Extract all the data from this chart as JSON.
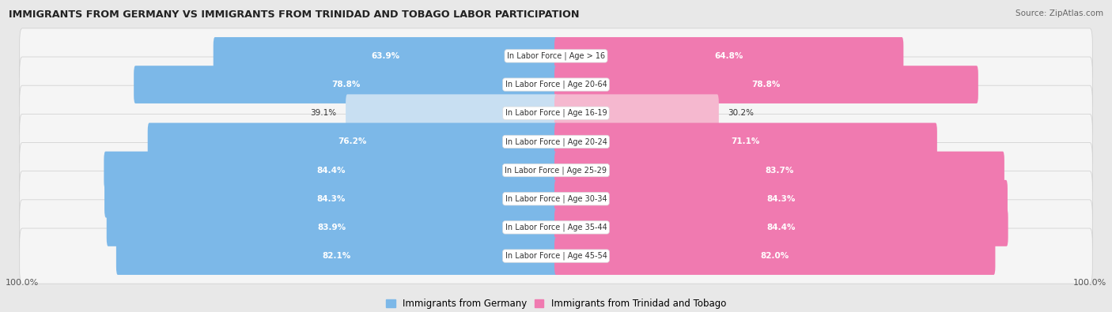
{
  "title": "IMMIGRANTS FROM GERMANY VS IMMIGRANTS FROM TRINIDAD AND TOBAGO LABOR PARTICIPATION",
  "source": "Source: ZipAtlas.com",
  "categories": [
    "In Labor Force | Age > 16",
    "In Labor Force | Age 20-64",
    "In Labor Force | Age 16-19",
    "In Labor Force | Age 20-24",
    "In Labor Force | Age 25-29",
    "In Labor Force | Age 30-34",
    "In Labor Force | Age 35-44",
    "In Labor Force | Age 45-54"
  ],
  "germany_values": [
    63.9,
    78.8,
    39.1,
    76.2,
    84.4,
    84.3,
    83.9,
    82.1
  ],
  "tt_values": [
    64.8,
    78.8,
    30.2,
    71.1,
    83.7,
    84.3,
    84.4,
    82.0
  ],
  "germany_color": "#7cb8e8",
  "germany_color_light": "#c8dff2",
  "tt_color": "#f07ab0",
  "tt_color_light": "#f5b8cf",
  "background_color": "#e8e8e8",
  "row_bg_color": "#f5f5f5",
  "max_val": 100.0,
  "legend_germany": "Immigrants from Germany",
  "legend_tt": "Immigrants from Trinidad and Tobago"
}
